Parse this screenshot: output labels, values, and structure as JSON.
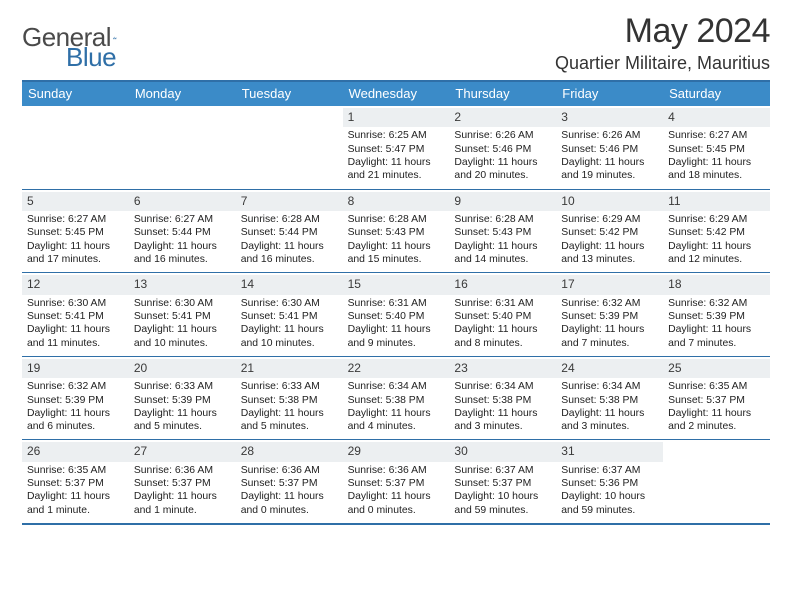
{
  "brand": {
    "name_a": "General",
    "name_b": "Blue"
  },
  "title": "May 2024",
  "location": "Quartier Militaire, Mauritius",
  "colors": {
    "accent": "#3b8bc8",
    "accent_border": "#2f6fa7",
    "daynum_bg": "#eceff1",
    "text": "#1a1a1a",
    "background": "#ffffff"
  },
  "grid": {
    "cols": 7,
    "rows": 5
  },
  "days_of_week": [
    "Sunday",
    "Monday",
    "Tuesday",
    "Wednesday",
    "Thursday",
    "Friday",
    "Saturday"
  ],
  "weeks": [
    [
      null,
      null,
      null,
      {
        "n": "1",
        "sunrise": "6:25 AM",
        "sunset": "5:47 PM",
        "daylight": "11 hours and 21 minutes."
      },
      {
        "n": "2",
        "sunrise": "6:26 AM",
        "sunset": "5:46 PM",
        "daylight": "11 hours and 20 minutes."
      },
      {
        "n": "3",
        "sunrise": "6:26 AM",
        "sunset": "5:46 PM",
        "daylight": "11 hours and 19 minutes."
      },
      {
        "n": "4",
        "sunrise": "6:27 AM",
        "sunset": "5:45 PM",
        "daylight": "11 hours and 18 minutes."
      }
    ],
    [
      {
        "n": "5",
        "sunrise": "6:27 AM",
        "sunset": "5:45 PM",
        "daylight": "11 hours and 17 minutes."
      },
      {
        "n": "6",
        "sunrise": "6:27 AM",
        "sunset": "5:44 PM",
        "daylight": "11 hours and 16 minutes."
      },
      {
        "n": "7",
        "sunrise": "6:28 AM",
        "sunset": "5:44 PM",
        "daylight": "11 hours and 16 minutes."
      },
      {
        "n": "8",
        "sunrise": "6:28 AM",
        "sunset": "5:43 PM",
        "daylight": "11 hours and 15 minutes."
      },
      {
        "n": "9",
        "sunrise": "6:28 AM",
        "sunset": "5:43 PM",
        "daylight": "11 hours and 14 minutes."
      },
      {
        "n": "10",
        "sunrise": "6:29 AM",
        "sunset": "5:42 PM",
        "daylight": "11 hours and 13 minutes."
      },
      {
        "n": "11",
        "sunrise": "6:29 AM",
        "sunset": "5:42 PM",
        "daylight": "11 hours and 12 minutes."
      }
    ],
    [
      {
        "n": "12",
        "sunrise": "6:30 AM",
        "sunset": "5:41 PM",
        "daylight": "11 hours and 11 minutes."
      },
      {
        "n": "13",
        "sunrise": "6:30 AM",
        "sunset": "5:41 PM",
        "daylight": "11 hours and 10 minutes."
      },
      {
        "n": "14",
        "sunrise": "6:30 AM",
        "sunset": "5:41 PM",
        "daylight": "11 hours and 10 minutes."
      },
      {
        "n": "15",
        "sunrise": "6:31 AM",
        "sunset": "5:40 PM",
        "daylight": "11 hours and 9 minutes."
      },
      {
        "n": "16",
        "sunrise": "6:31 AM",
        "sunset": "5:40 PM",
        "daylight": "11 hours and 8 minutes."
      },
      {
        "n": "17",
        "sunrise": "6:32 AM",
        "sunset": "5:39 PM",
        "daylight": "11 hours and 7 minutes."
      },
      {
        "n": "18",
        "sunrise": "6:32 AM",
        "sunset": "5:39 PM",
        "daylight": "11 hours and 7 minutes."
      }
    ],
    [
      {
        "n": "19",
        "sunrise": "6:32 AM",
        "sunset": "5:39 PM",
        "daylight": "11 hours and 6 minutes."
      },
      {
        "n": "20",
        "sunrise": "6:33 AM",
        "sunset": "5:39 PM",
        "daylight": "11 hours and 5 minutes."
      },
      {
        "n": "21",
        "sunrise": "6:33 AM",
        "sunset": "5:38 PM",
        "daylight": "11 hours and 5 minutes."
      },
      {
        "n": "22",
        "sunrise": "6:34 AM",
        "sunset": "5:38 PM",
        "daylight": "11 hours and 4 minutes."
      },
      {
        "n": "23",
        "sunrise": "6:34 AM",
        "sunset": "5:38 PM",
        "daylight": "11 hours and 3 minutes."
      },
      {
        "n": "24",
        "sunrise": "6:34 AM",
        "sunset": "5:38 PM",
        "daylight": "11 hours and 3 minutes."
      },
      {
        "n": "25",
        "sunrise": "6:35 AM",
        "sunset": "5:37 PM",
        "daylight": "11 hours and 2 minutes."
      }
    ],
    [
      {
        "n": "26",
        "sunrise": "6:35 AM",
        "sunset": "5:37 PM",
        "daylight": "11 hours and 1 minute."
      },
      {
        "n": "27",
        "sunrise": "6:36 AM",
        "sunset": "5:37 PM",
        "daylight": "11 hours and 1 minute."
      },
      {
        "n": "28",
        "sunrise": "6:36 AM",
        "sunset": "5:37 PM",
        "daylight": "11 hours and 0 minutes."
      },
      {
        "n": "29",
        "sunrise": "6:36 AM",
        "sunset": "5:37 PM",
        "daylight": "11 hours and 0 minutes."
      },
      {
        "n": "30",
        "sunrise": "6:37 AM",
        "sunset": "5:37 PM",
        "daylight": "10 hours and 59 minutes."
      },
      {
        "n": "31",
        "sunrise": "6:37 AM",
        "sunset": "5:36 PM",
        "daylight": "10 hours and 59 minutes."
      },
      null
    ]
  ],
  "labels": {
    "sunrise": "Sunrise:",
    "sunset": "Sunset:",
    "daylight": "Daylight:"
  }
}
